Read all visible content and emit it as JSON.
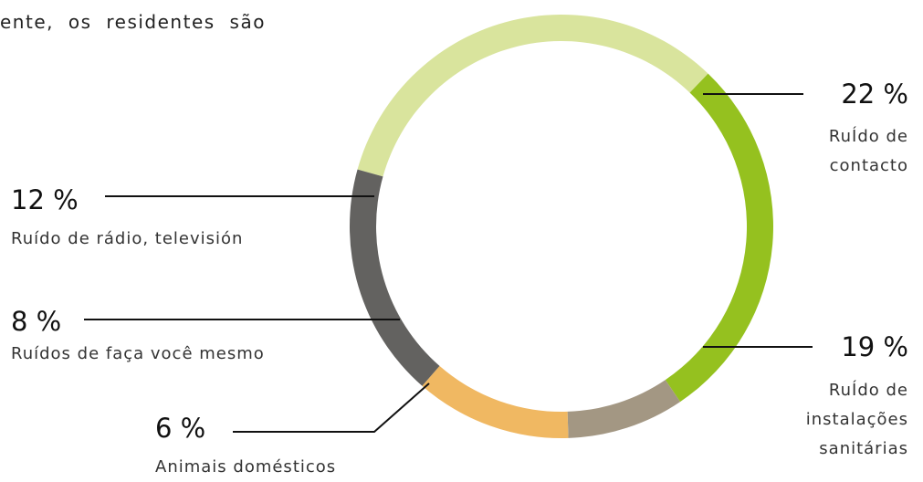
{
  "intro_text": "ente, os residentes são",
  "chart_data": {
    "type": "donut",
    "categories": [
      "RuÍdo de contacto",
      "RuÍdo de instalações sanitárias",
      "Animais domésticos",
      "Ruídos de faça você mesmo",
      "Ruído de rádio, televisión"
    ],
    "values": [
      22,
      19,
      6,
      8,
      12
    ],
    "value_labels": [
      "22 %",
      "19 %",
      "6 %",
      "8 %",
      "12 %"
    ],
    "colors": [
      "#d9e49d",
      "#95c11f",
      "#a39783",
      "#f0b862",
      "#636260"
    ]
  }
}
